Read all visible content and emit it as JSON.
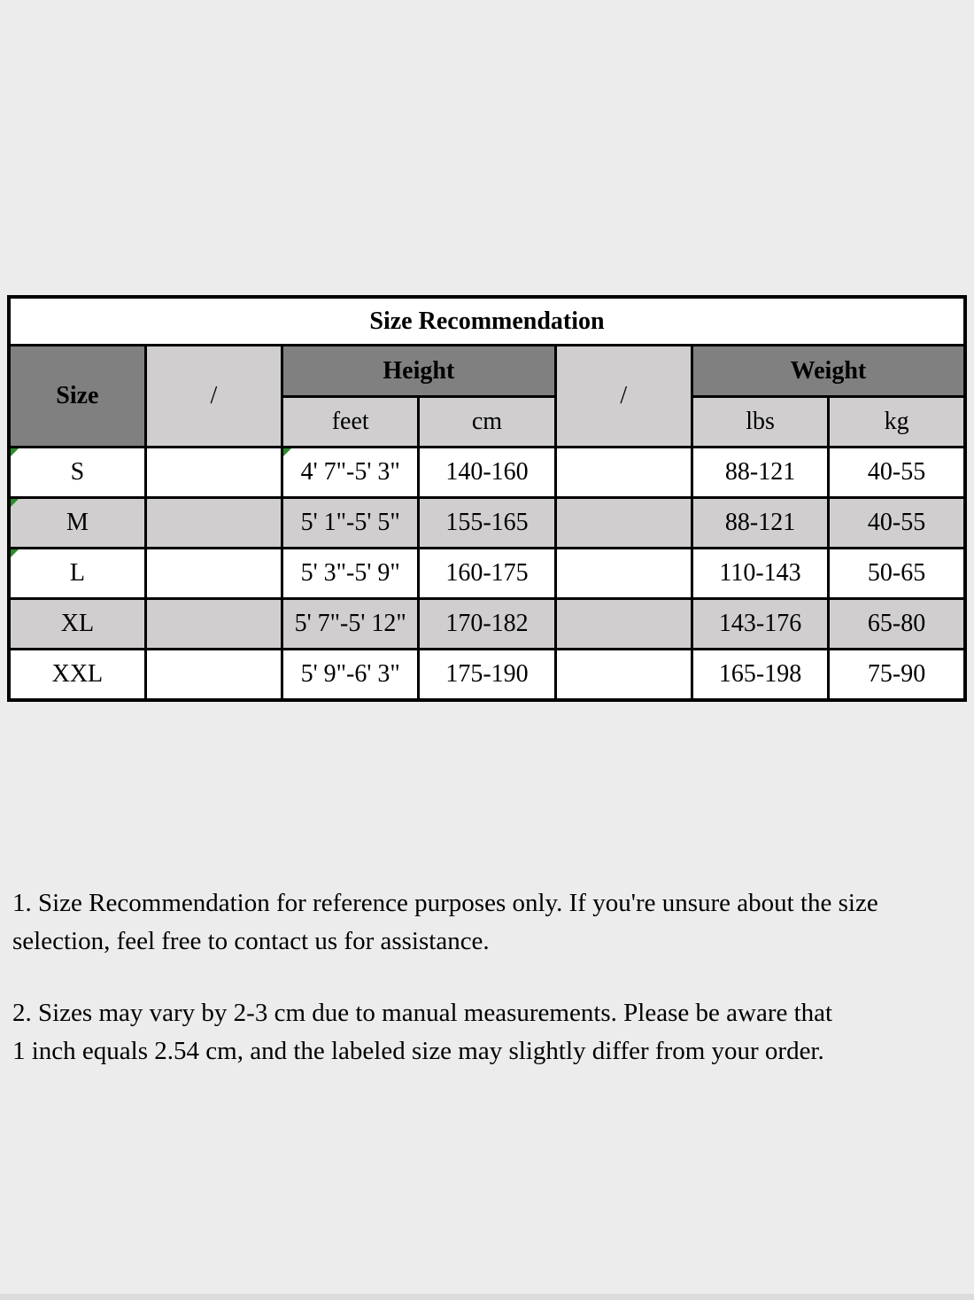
{
  "table": {
    "title": "Size Recommendation",
    "headers": {
      "size": "Size",
      "slash1": "/",
      "height": "Height",
      "slash2": "/",
      "weight": "Weight",
      "feet": "feet",
      "cm": "cm",
      "lbs": "lbs",
      "kg": "kg"
    },
    "rows": [
      {
        "size": "S",
        "feet": "4' 7\"-5' 3\"",
        "cm": "140-160",
        "lbs": "88-121",
        "kg": "40-55"
      },
      {
        "size": "M",
        "feet": "5' 1\"-5' 5\"",
        "cm": "155-165",
        "lbs": "88-121",
        "kg": "40-55"
      },
      {
        "size": "L",
        "feet": "5' 3\"-5' 9\"",
        "cm": "160-175",
        "lbs": "110-143",
        "kg": "50-65"
      },
      {
        "size": "XL",
        "feet": "5' 7\"-5' 12\"",
        "cm": "170-182",
        "lbs": "143-176",
        "kg": "65-80"
      },
      {
        "size": "XXL",
        "feet": "5' 9\"-6' 3\"",
        "cm": "175-190",
        "lbs": "165-198",
        "kg": "75-90"
      }
    ]
  },
  "notes": [
    {
      "lines": [
        "1. Size Recommendation for reference purposes only. If you're unsure about the size",
        "selection, feel free to contact us for assistance."
      ]
    },
    {
      "lines": [
        "2. Sizes may vary by 2-3 cm due to manual measurements. Please be aware that",
        "1 inch equals 2.54 cm, and the labeled size may slightly differ from your order."
      ]
    }
  ],
  "colors": {
    "page_background": "#ececec",
    "header_dark": "#808080",
    "cell_shaded": "#d0cece",
    "cell_plain": "#ffffff",
    "border": "#000000",
    "flag_green": "#2e8b2e"
  }
}
